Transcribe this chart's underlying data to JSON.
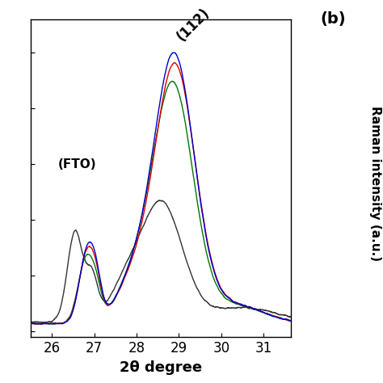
{
  "xlim": [
    25.5,
    31.65
  ],
  "xlabel": "2θ degree",
  "xlabel_fontsize": 13,
  "annotation_112": "(112)",
  "annotation_fto": "(FTO)",
  "right_label": "Raman intensity (a.u.)",
  "panel_label": "(b)",
  "colors": {
    "black": "#333333",
    "red": "#dd0000",
    "blue": "#0000cc",
    "green": "#007700"
  },
  "xticks": [
    26,
    27,
    28,
    29,
    30,
    31
  ],
  "background": "#ffffff",
  "ylim": [
    -0.02,
    1.12
  ]
}
